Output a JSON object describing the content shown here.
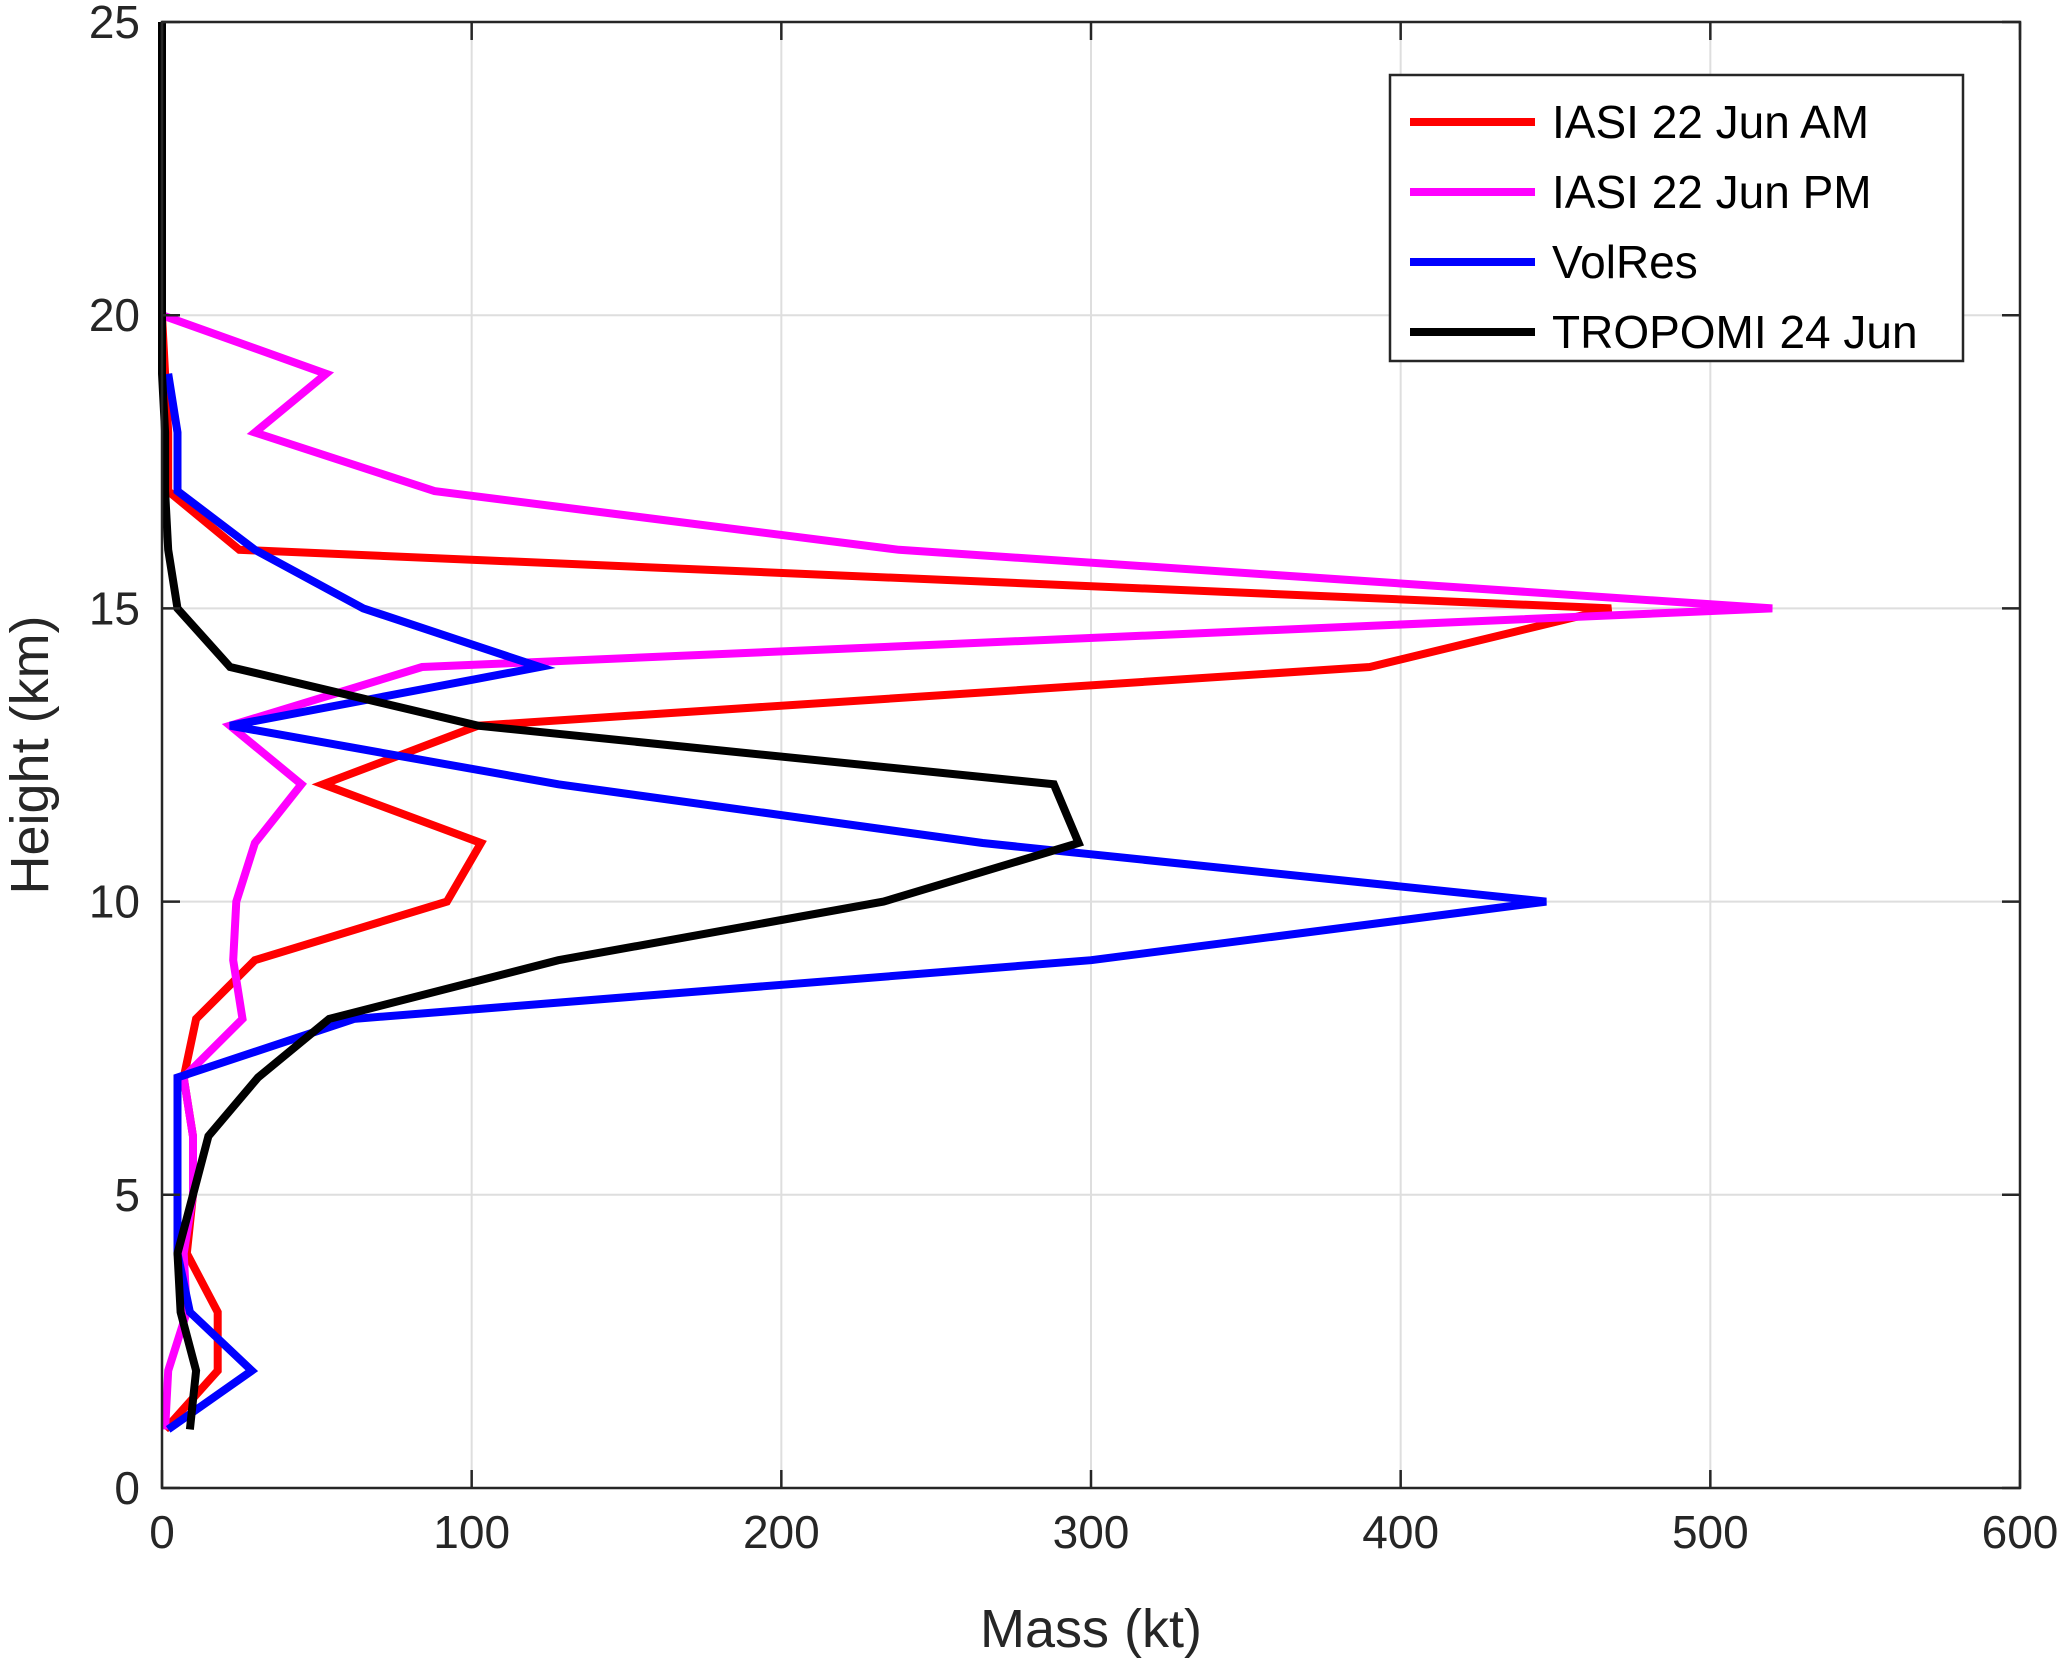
{
  "chart_data": {
    "type": "line",
    "title": "",
    "xlabel": "Mass (kt)",
    "ylabel": "Height (km)",
    "xlim": [
      0,
      600
    ],
    "ylim": [
      0,
      25
    ],
    "xticks": [
      0,
      100,
      200,
      300,
      400,
      500,
      600
    ],
    "yticks": [
      0,
      5,
      10,
      15,
      20,
      25
    ],
    "grid": true,
    "legend_position": "top-right",
    "series": [
      {
        "name": "IASI 22 Jun AM",
        "color": "#ff0000",
        "points": [
          [
            1,
            1
          ],
          [
            18,
            2
          ],
          [
            18,
            3
          ],
          [
            8,
            4
          ],
          [
            10,
            5
          ],
          [
            10,
            6
          ],
          [
            7,
            7
          ],
          [
            11,
            8
          ],
          [
            30,
            9
          ],
          [
            92,
            10
          ],
          [
            103,
            11
          ],
          [
            52,
            12
          ],
          [
            102,
            13
          ],
          [
            390,
            14
          ],
          [
            468,
            15
          ],
          [
            25,
            16
          ],
          [
            2,
            17
          ],
          [
            2,
            18
          ],
          [
            1,
            19
          ],
          [
            0,
            20
          ]
        ]
      },
      {
        "name": "IASI 22 Jun PM",
        "color": "#ff00ff",
        "points": [
          [
            1,
            1
          ],
          [
            2,
            2
          ],
          [
            8,
            3
          ],
          [
            7,
            4
          ],
          [
            10,
            5
          ],
          [
            10,
            6
          ],
          [
            7,
            7
          ],
          [
            26,
            8
          ],
          [
            23,
            9
          ],
          [
            24,
            10
          ],
          [
            30,
            11
          ],
          [
            45,
            12
          ],
          [
            22,
            13
          ],
          [
            84,
            14
          ],
          [
            520,
            15
          ],
          [
            238,
            16
          ],
          [
            88,
            17
          ],
          [
            30,
            18
          ],
          [
            53,
            19
          ],
          [
            0,
            20
          ]
        ]
      },
      {
        "name": "VolRes",
        "color": "#0000ff",
        "points": [
          [
            2,
            1
          ],
          [
            29,
            2
          ],
          [
            9,
            3
          ],
          [
            5,
            4
          ],
          [
            5,
            5
          ],
          [
            5,
            6
          ],
          [
            5,
            7
          ],
          [
            62,
            8
          ],
          [
            300,
            9
          ],
          [
            447,
            10
          ],
          [
            265,
            11
          ],
          [
            128,
            12
          ],
          [
            22,
            13
          ],
          [
            122,
            14
          ],
          [
            65,
            15
          ],
          [
            30,
            16
          ],
          [
            5,
            17
          ],
          [
            5,
            18
          ],
          [
            2,
            19
          ]
        ]
      },
      {
        "name": "TROPOMI 24 Jun",
        "color": "#000000",
        "points": [
          [
            9,
            1
          ],
          [
            11,
            2
          ],
          [
            6,
            3
          ],
          [
            5,
            4
          ],
          [
            10,
            5
          ],
          [
            15,
            6
          ],
          [
            31,
            7
          ],
          [
            54,
            8
          ],
          [
            128,
            9
          ],
          [
            233,
            10
          ],
          [
            296,
            11
          ],
          [
            288,
            12
          ],
          [
            102,
            13
          ],
          [
            22,
            14
          ],
          [
            5,
            15
          ],
          [
            2,
            16
          ],
          [
            1,
            17
          ],
          [
            1,
            18
          ],
          [
            0,
            19
          ],
          [
            0,
            20
          ],
          [
            0,
            21
          ],
          [
            0,
            22
          ],
          [
            0,
            23
          ],
          [
            0,
            24
          ],
          [
            0,
            25
          ]
        ]
      }
    ]
  }
}
